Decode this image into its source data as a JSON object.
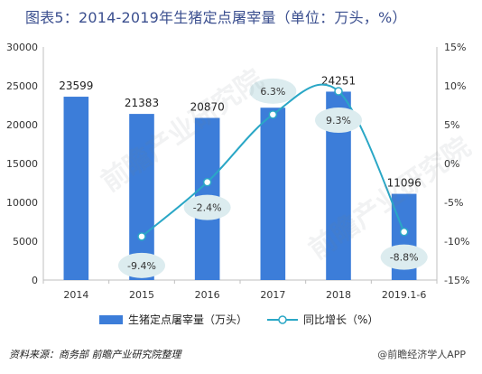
{
  "title": "图表5：2014-2019年生猪定点屠宰量（单位：万头，%）",
  "source": "资料来源：商务部 前瞻产业研究院整理",
  "logo_text": "@前瞻经济学人APP",
  "watermark_text": "前瞻产业研究院",
  "colors": {
    "bar": "#3c7dd9",
    "line": "#2aa7c6",
    "bubble": "#dcecef",
    "title": "#3b4f8f"
  },
  "chart_data": {
    "type": "bar",
    "categories": [
      "2014",
      "2015",
      "2016",
      "2017",
      "2018",
      "2019.1-6"
    ],
    "series": [
      {
        "name": "生猪定点屠宰量（万头）",
        "type": "bar",
        "axis": "left",
        "values": [
          23599,
          21383,
          20870,
          22183,
          24251,
          11096
        ]
      },
      {
        "name": "同比增长（%）",
        "type": "line",
        "axis": "right",
        "values": [
          null,
          -9.4,
          -2.4,
          6.3,
          9.3,
          -8.8
        ],
        "labels": [
          "",
          "-9.4%",
          "-2.4%",
          "6.3%",
          "9.3%",
          "-8.8%"
        ]
      }
    ],
    "y_left": {
      "min": 0,
      "max": 30000,
      "ticks": [
        "0",
        "5000",
        "10000",
        "15000",
        "20000",
        "25000",
        "30000"
      ]
    },
    "y_right": {
      "min": -15,
      "max": 15,
      "ticks": [
        "-15%",
        "-10%",
        "-5%",
        "0%",
        "5%",
        "10%",
        "15%"
      ]
    },
    "legend_position": "bottom"
  }
}
